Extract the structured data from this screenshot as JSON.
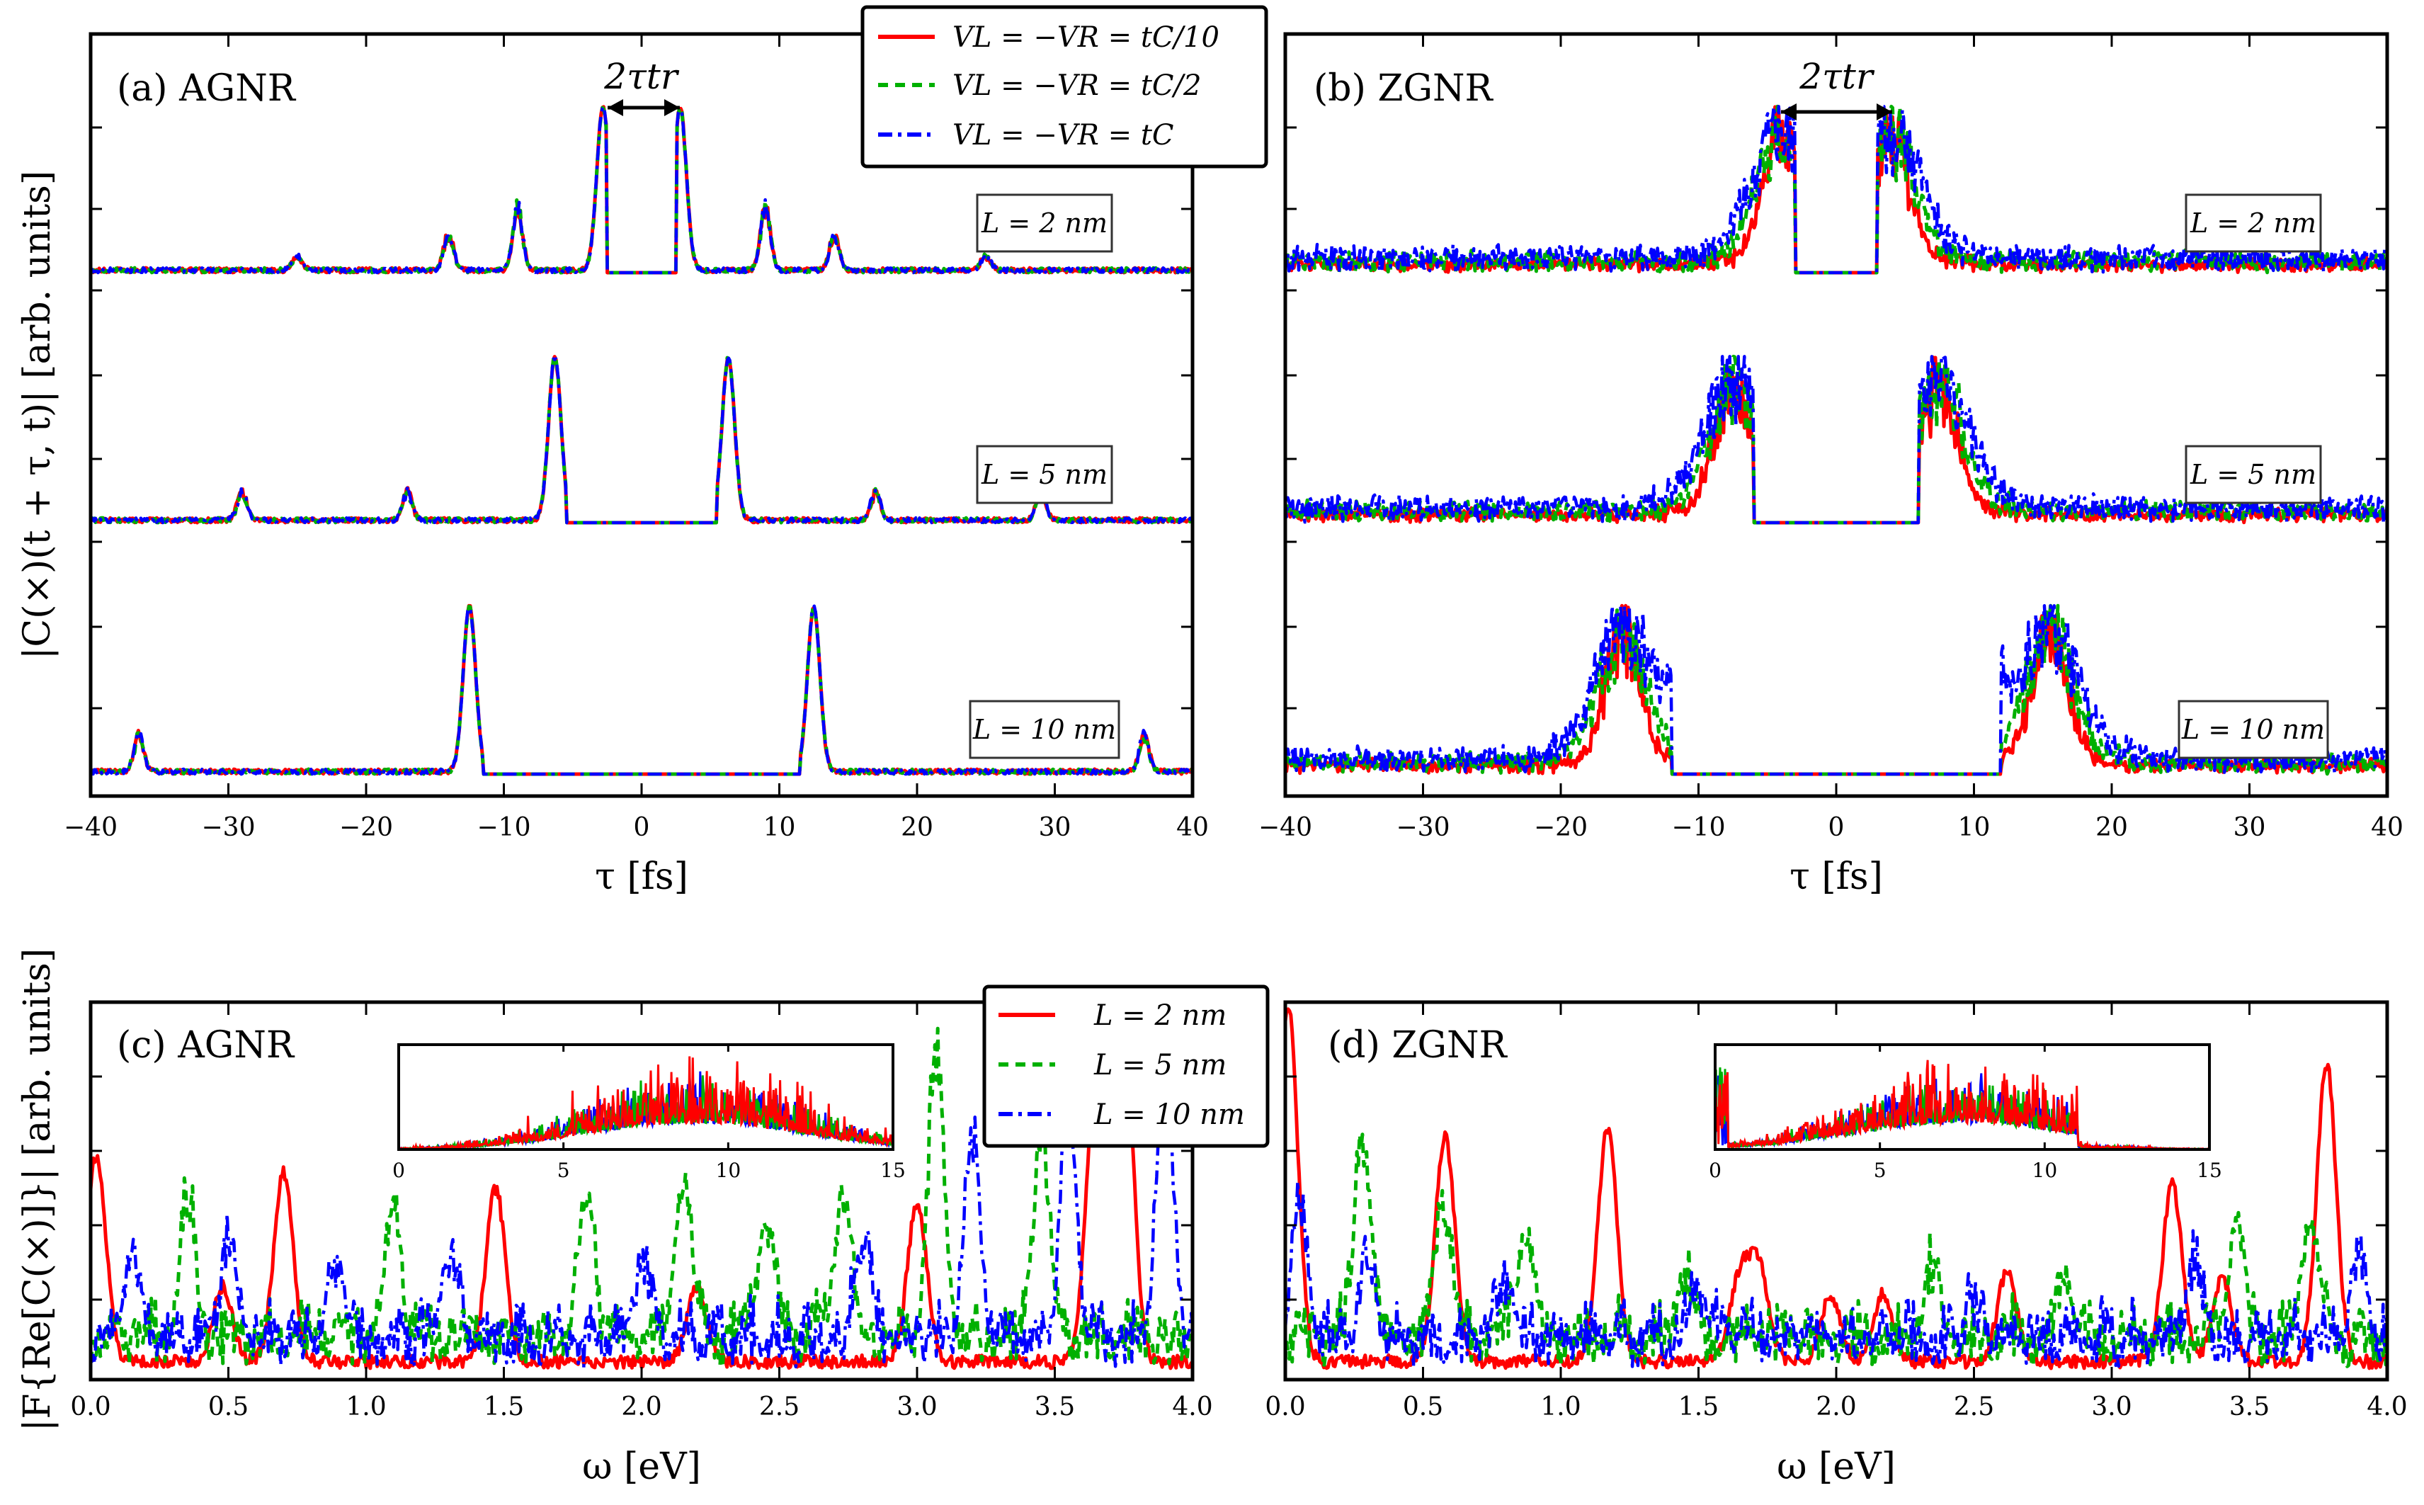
{
  "chart_data": [
    {
      "id": "a",
      "type": "line",
      "panel_label": "(a) AGNR",
      "xlabel": "τ [fs]",
      "ylabel": "|C(×)(t + τ, t)| [arb. units]",
      "xlim": [
        -40,
        40
      ],
      "xticks": [
        "−40",
        "−30",
        "−20",
        "−10",
        "0",
        "10",
        "20",
        "30",
        "40"
      ],
      "legend": [
        "VL = −VR = tC/10",
        "VL = −VR = tC/2",
        "VL = −VR = tC"
      ],
      "annotation": "2τtr",
      "traces": [
        {
          "label": "L = 2 nm",
          "peak_tau": 2.8,
          "side_peaks": [
            [
              9,
              0.45
            ],
            [
              14,
              0.25
            ],
            [
              25,
              0.1
            ]
          ],
          "gap_tau": 2.5
        },
        {
          "label": "L = 5 nm",
          "peak_tau": 6.3,
          "side_peaks": [
            [
              17,
              0.2
            ],
            [
              29,
              0.2
            ]
          ],
          "gap_tau": 5.5
        },
        {
          "label": "L = 10 nm",
          "peak_tau": 12.5,
          "side_peaks": [
            [
              36.5,
              0.25
            ]
          ],
          "gap_tau": 11.5
        }
      ]
    },
    {
      "id": "b",
      "type": "line",
      "panel_label": "(b) ZGNR",
      "xlabel": "τ [fs]",
      "xlim": [
        -40,
        40
      ],
      "xticks": [
        "−40",
        "−30",
        "−20",
        "−10",
        "0",
        "10",
        "20",
        "30",
        "40"
      ],
      "annotation": "2τtr",
      "traces": [
        {
          "label": "L = 2 nm",
          "peak_tau": 4.0,
          "gap_tau": 3.0
        },
        {
          "label": "L = 5 nm",
          "peak_tau": 7.5,
          "gap_tau": 6.0
        },
        {
          "label": "L = 10 nm",
          "peak_tau": 15.5,
          "gap_tau": 12.0
        }
      ]
    },
    {
      "id": "c",
      "type": "line",
      "panel_label": "(c) AGNR",
      "xlabel": "ω [eV]",
      "ylabel": "|F{Re[C(×)]}| [arb. units]",
      "xlim": [
        0,
        4
      ],
      "xticks": [
        "0.0",
        "0.5",
        "1.0",
        "1.5",
        "2.0",
        "2.5",
        "3.0",
        "3.5",
        "4.0"
      ],
      "legend": [
        "L = 2 nm",
        "L = 5 nm",
        "L = 10 nm"
      ],
      "inset_xlim": [
        0,
        15
      ],
      "inset_xticks": [
        "0",
        "5",
        "10",
        "15"
      ],
      "red_peaks": [
        [
          0.02,
          0.55
        ],
        [
          0.48,
          0.2
        ],
        [
          0.7,
          0.5
        ],
        [
          1.47,
          0.46
        ],
        [
          2.2,
          0.2
        ],
        [
          3.0,
          0.42
        ],
        [
          3.65,
          0.75
        ],
        [
          3.75,
          0.9
        ]
      ],
      "green_peaks": [
        [
          0.35,
          0.36
        ],
        [
          1.1,
          0.36
        ],
        [
          1.8,
          0.38
        ],
        [
          2.15,
          0.42
        ],
        [
          2.45,
          0.3
        ],
        [
          2.73,
          0.4
        ],
        [
          3.07,
          0.72
        ],
        [
          3.45,
          0.55
        ]
      ],
      "blue_peaks": [
        [
          0.15,
          0.25
        ],
        [
          0.5,
          0.25
        ],
        [
          0.9,
          0.2
        ],
        [
          1.3,
          0.22
        ],
        [
          2.0,
          0.2
        ],
        [
          2.8,
          0.25
        ],
        [
          3.2,
          0.5
        ],
        [
          3.55,
          0.6
        ],
        [
          3.9,
          0.7
        ]
      ]
    },
    {
      "id": "d",
      "type": "line",
      "panel_label": "(d) ZGNR",
      "xlabel": "ω [eV]",
      "xlim": [
        0,
        4
      ],
      "xticks": [
        "0.0",
        "0.5",
        "1.0",
        "1.5",
        "2.0",
        "2.5",
        "3.0",
        "3.5",
        "4.0"
      ],
      "inset_xlim": [
        0,
        15
      ],
      "inset_xticks": [
        "0",
        "5",
        "10",
        "15"
      ],
      "red_peaks": [
        [
          0.01,
          0.95
        ],
        [
          0.58,
          0.6
        ],
        [
          1.17,
          0.62
        ],
        [
          1.65,
          0.22
        ],
        [
          1.72,
          0.25
        ],
        [
          1.98,
          0.18
        ],
        [
          2.17,
          0.18
        ],
        [
          2.62,
          0.24
        ],
        [
          3.22,
          0.47
        ],
        [
          3.4,
          0.22
        ],
        [
          3.78,
          0.79
        ]
      ],
      "green_peaks": [
        [
          0.28,
          0.54
        ],
        [
          0.57,
          0.38
        ],
        [
          0.87,
          0.3
        ],
        [
          1.45,
          0.18
        ],
        [
          2.35,
          0.18
        ],
        [
          2.83,
          0.18
        ],
        [
          3.45,
          0.3
        ],
        [
          3.72,
          0.33
        ]
      ],
      "blue_peaks": [
        [
          0.05,
          0.35
        ],
        [
          0.3,
          0.18
        ],
        [
          0.8,
          0.15
        ],
        [
          1.5,
          0.12
        ],
        [
          2.5,
          0.1
        ],
        [
          3.3,
          0.2
        ],
        [
          3.9,
          0.2
        ]
      ]
    }
  ],
  "colors": {
    "red": "#ff0000",
    "green": "#00b000",
    "blue": "#0000ff"
  }
}
